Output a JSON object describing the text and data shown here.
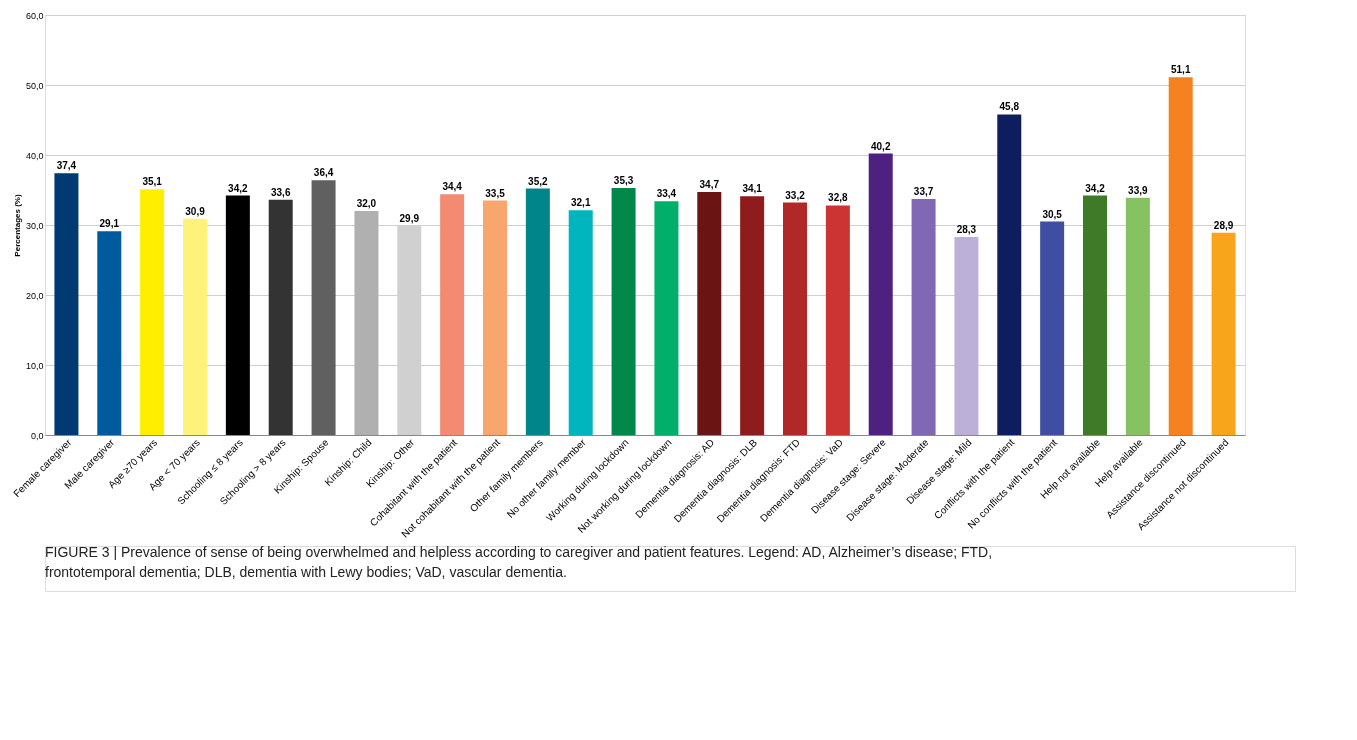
{
  "chart_data": {
    "type": "bar",
    "ylabel": "Percentages  (%)",
    "categories": [
      "Female caregiver",
      "Male caregiver",
      "Age ≥70 years",
      "Age < 70 years",
      "Schooling ≤ 8 years",
      "Schooling > 8 years",
      "Kinship: Spouse",
      "Kinship: Child",
      "Kinship: Other",
      "Cohabitant with the patient",
      "Not cohabitant with the patient",
      "Other family members",
      "No other family member",
      "Working during lockdown",
      "Not working during lockdown",
      "Dementia diagnosis: AD",
      "Dementia diagnosis: DLB",
      "Dementia diagnosis: FTD",
      "Dementia diagnosis: VaD",
      "Disease stage: Severe",
      "Disease stage: Moderate",
      "Disease stage: Mild",
      "Conflicts with the patient",
      "No conflicts with the patient",
      "Help not available",
      "Help available",
      "Assistance discontinued",
      "Assistance not discontinued"
    ],
    "values": [
      37.4,
      29.1,
      35.1,
      30.9,
      34.2,
      33.6,
      36.4,
      32.0,
      29.9,
      34.4,
      33.5,
      35.2,
      32.1,
      35.3,
      33.4,
      34.7,
      34.1,
      33.2,
      32.8,
      40.2,
      33.7,
      28.3,
      45.8,
      30.5,
      34.2,
      33.9,
      51.1,
      28.9
    ],
    "value_labels": [
      "37,4",
      "29,1",
      "35,1",
      "30,9",
      "34,2",
      "33,6",
      "36,4",
      "32,0",
      "29,9",
      "34,4",
      "33,5",
      "35,2",
      "32,1",
      "35,3",
      "33,4",
      "34,7",
      "34,1",
      "33,2",
      "32,8",
      "40,2",
      "33,7",
      "28,3",
      "45,8",
      "30,5",
      "34,2",
      "33,9",
      "51,1",
      "28,9"
    ],
    "colors": [
      "#003a70",
      "#005a9c",
      "#ffee00",
      "#fff27a",
      "#000000",
      "#333333",
      "#606060",
      "#b0b0b0",
      "#d0d0d0",
      "#f48a72",
      "#f9a66e",
      "#00868a",
      "#00b5bd",
      "#00874a",
      "#00b06a",
      "#6b1414",
      "#8e1c1c",
      "#b02828",
      "#cc3333",
      "#4e2180",
      "#8068b4",
      "#bcb0d8",
      "#0d1d5e",
      "#3f4ea3",
      "#3e7a28",
      "#86c262",
      "#f58220",
      "#f9a51b"
    ],
    "ylim": [
      0,
      60
    ],
    "yticks": [
      {
        "value": 0,
        "label": "0,0"
      },
      {
        "value": 10,
        "label": "10,0"
      },
      {
        "value": 20,
        "label": "20,0"
      },
      {
        "value": 30,
        "label": "30,0"
      },
      {
        "value": 40,
        "label": "40,0"
      },
      {
        "value": 50,
        "label": "50,0"
      },
      {
        "value": 60,
        "label": "60,0"
      }
    ],
    "grid": "y",
    "legend": false,
    "annotations": [
      "FIGURE 3 | Prevalence of sense of being overwhelmed and helpless according to caregiver and patient features. Legend: AD, Alzheimer’s disease; FTD, frontotemporal dementia; DLB, dementia with Lewy bodies; VaD, vascular dementia."
    ]
  }
}
